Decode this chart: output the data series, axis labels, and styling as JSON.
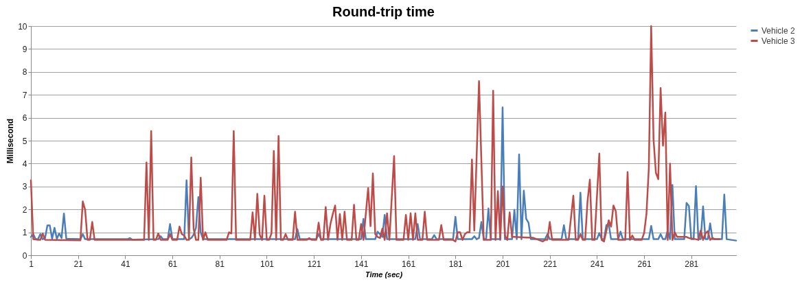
{
  "chart_data": {
    "type": "line",
    "title": "Round-trip time",
    "xlabel": "Time (sec)",
    "ylabel": "Millisecond",
    "xlim": [
      1,
      300
    ],
    "xticks": [
      1,
      21,
      41,
      61,
      81,
      101,
      121,
      141,
      161,
      181,
      201,
      221,
      241,
      261,
      281
    ],
    "ylim": [
      0,
      10
    ],
    "yticks": [
      0,
      1,
      2,
      3,
      4,
      5,
      6,
      7,
      8,
      9,
      10
    ],
    "grid": "y",
    "legend": "right",
    "series": [
      {
        "name": "Vehicle 2",
        "color": "#4a7ebb",
        "line_style": "solid",
        "x": [
          1,
          2,
          3,
          4,
          5,
          6,
          7,
          8,
          9,
          10,
          11,
          12,
          13,
          14,
          15,
          16,
          22,
          23,
          24,
          42,
          43,
          44,
          55,
          56,
          57,
          59,
          60,
          61,
          66,
          67,
          68,
          69,
          70,
          71,
          72,
          73,
          74,
          113,
          114,
          115,
          122,
          123,
          124,
          141,
          142,
          143,
          147,
          148,
          149,
          150,
          151,
          152,
          164,
          165,
          166,
          171,
          172,
          173,
          180,
          181,
          182,
          188,
          189,
          190,
          191,
          192,
          193,
          194,
          195,
          196,
          200,
          201,
          202,
          205,
          206,
          207,
          208,
          209,
          210,
          211,
          212,
          213,
          219,
          220,
          221,
          226,
          227,
          228,
          233,
          234,
          235,
          241,
          242,
          243,
          244,
          245,
          246,
          247,
          250,
          251,
          252,
          263,
          264,
          265,
          267,
          268,
          269,
          270,
          271,
          272,
          273,
          274,
          278,
          279,
          280,
          281,
          282,
          283,
          284,
          285,
          286,
          287,
          288,
          289,
          290,
          294,
          295,
          296,
          300
        ],
        "values": [
          0.8,
          0.92,
          0.7,
          0.7,
          0.92,
          0.7,
          0.75,
          1.3,
          1.3,
          0.72,
          1.2,
          0.72,
          0.95,
          0.75,
          1.82,
          0.72,
          0.7,
          0.92,
          0.7,
          0.7,
          0.75,
          0.68,
          0.7,
          0.83,
          0.7,
          0.7,
          1.36,
          0.7,
          0.7,
          3.27,
          0.7,
          0.75,
          0.9,
          1.2,
          2.54,
          1.0,
          0.7,
          0.7,
          1.14,
          0.7,
          0.7,
          0.92,
          0.7,
          0.7,
          1.59,
          0.7,
          0.7,
          1.03,
          0.92,
          0.8,
          1.76,
          0.7,
          0.7,
          1.36,
          0.7,
          0.7,
          0.88,
          0.7,
          0.7,
          1.68,
          0.7,
          0.7,
          0.83,
          0.7,
          0.75,
          1.45,
          0.7,
          0.7,
          2.04,
          0.7,
          0.7,
          6.45,
          0.7,
          0.7,
          1.98,
          0.7,
          4.4,
          0.7,
          2.82,
          1.59,
          1.42,
          0.7,
          0.7,
          0.92,
          0.7,
          0.7,
          1.31,
          0.7,
          0.7,
          2.73,
          0.7,
          0.7,
          0.97,
          0.7,
          0.7,
          1.31,
          1.36,
          0.7,
          0.7,
          1.03,
          0.7,
          0.7,
          1.28,
          0.7,
          0.7,
          0.92,
          0.7,
          0.7,
          1.08,
          0.7,
          3.07,
          0.7,
          0.7,
          2.28,
          2.15,
          0.7,
          0.7,
          3.02,
          0.7,
          0.7,
          2.13,
          0.7,
          0.7,
          1.39,
          0.7,
          0.7,
          2.65,
          0.7,
          0.64
        ]
      },
      {
        "name": "Vehicle 3",
        "color": "#be4b48",
        "line_style": "solid",
        "x": [
          1,
          2,
          4,
          5,
          6,
          7,
          22,
          23,
          24,
          25,
          26,
          27,
          28,
          49,
          50,
          51,
          52,
          53,
          54,
          55,
          56,
          59,
          60,
          61,
          63,
          64,
          65,
          66,
          67,
          68,
          69,
          70,
          71,
          72,
          73,
          74,
          75,
          76,
          84,
          85,
          86,
          87,
          88,
          94,
          95,
          96,
          97,
          98,
          99,
          100,
          101,
          102,
          103,
          104,
          105,
          106,
          107,
          108,
          109,
          110,
          112,
          113,
          114,
          118,
          119,
          120,
          122,
          123,
          124,
          125,
          126,
          127,
          128,
          129,
          130,
          131,
          132,
          133,
          134,
          135,
          137,
          138,
          139,
          140,
          141,
          142,
          144,
          145,
          146,
          147,
          148,
          149,
          150,
          151,
          152,
          153,
          155,
          156,
          159,
          160,
          161,
          162,
          163,
          164,
          165,
          167,
          168,
          169,
          174,
          175,
          176,
          180,
          181,
          182,
          183,
          184,
          185,
          186,
          187,
          188,
          189,
          191,
          193,
          196,
          197,
          198,
          199,
          200,
          201,
          202,
          203,
          204,
          205,
          206,
          214,
          218,
          219,
          220,
          221,
          222,
          229,
          231,
          232,
          233,
          234,
          235,
          236,
          237,
          238,
          239,
          240,
          242,
          243,
          244,
          246,
          247,
          248,
          249,
          250,
          253,
          254,
          255,
          256,
          257,
          260,
          261,
          262,
          263,
          264,
          265,
          266,
          267,
          268,
          269,
          270,
          271,
          272,
          273,
          274,
          275,
          279,
          280,
          283,
          284,
          285,
          286,
          287,
          288,
          289,
          290,
          291,
          293
        ],
        "values": [
          3.27,
          0.7,
          0.67,
          0.67,
          0.95,
          0.67,
          0.65,
          2.35,
          1.98,
          0.67,
          0.67,
          1.45,
          0.67,
          0.67,
          4.05,
          0.67,
          5.42,
          0.67,
          0.67,
          0.95,
          0.67,
          0.67,
          0.92,
          0.67,
          0.67,
          1.25,
          0.92,
          0.86,
          0.67,
          0.67,
          4.27,
          1.15,
          0.67,
          0.67,
          3.38,
          0.67,
          1.0,
          0.67,
          0.67,
          1.0,
          0.95,
          5.42,
          0.67,
          0.67,
          1.87,
          0.67,
          2.68,
          0.9,
          0.67,
          2.6,
          0.67,
          0.67,
          0.95,
          4.55,
          0.67,
          5.2,
          0.67,
          0.67,
          0.92,
          0.67,
          0.67,
          1.9,
          0.67,
          0.67,
          0.75,
          0.67,
          0.67,
          1.42,
          0.67,
          0.67,
          2.1,
          0.67,
          1.36,
          1.8,
          2.17,
          0.67,
          1.8,
          0.67,
          1.9,
          0.67,
          0.67,
          2.2,
          0.67,
          0.67,
          1.36,
          0.67,
          2.93,
          1.27,
          3.57,
          0.92,
          0.8,
          0.75,
          1.16,
          0.67,
          1.83,
          0.67,
          4.33,
          0.67,
          0.67,
          1.76,
          0.67,
          1.83,
          0.67,
          1.83,
          0.67,
          0.67,
          1.9,
          0.67,
          0.67,
          1.32,
          0.67,
          0.67,
          0.6,
          1.0,
          1.0,
          0.67,
          0.92,
          1.0,
          1.0,
          4.18,
          1.08,
          7.6,
          0.67,
          0.67,
          7.18,
          0.67,
          2.8,
          0.67,
          3.0,
          0.86,
          0.67,
          1.87,
          0.8,
          0.8,
          0.76,
          0.6,
          0.67,
          0.67,
          1.45,
          0.67,
          0.67,
          2.6,
          0.67,
          0.67,
          0.92,
          0.67,
          0.67,
          2.35,
          3.3,
          0.67,
          0.67,
          4.44,
          0.67,
          0.6,
          1.53,
          1.25,
          2.17,
          1.92,
          0.67,
          0.67,
          3.63,
          0.67,
          0.86,
          0.67,
          0.67,
          0.97,
          1.81,
          3.8,
          10,
          5.05,
          3.6,
          3.32,
          7.3,
          4.78,
          6.23,
          0.67,
          4.0,
          0.67,
          1.0,
          0.8,
          0.8,
          0.75,
          0.7,
          0.67,
          1.08,
          0.67,
          0.95,
          1.05,
          0.67,
          0.75,
          0.7,
          0.7
        ]
      }
    ]
  }
}
